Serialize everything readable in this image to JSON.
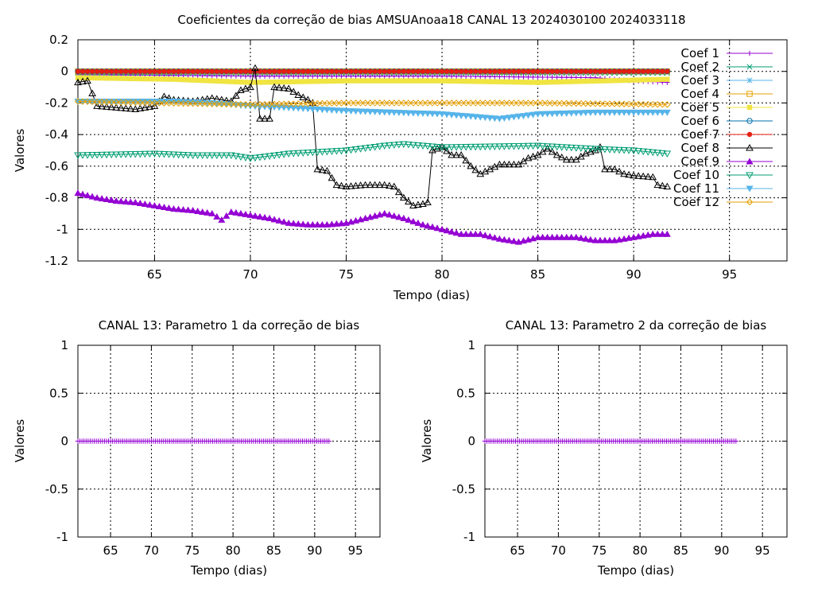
{
  "chart_data": [
    {
      "type": "line",
      "title": "Coeficientes da correção de bias AMSUAnoaa18 CANAL 13 2024030100 2024033118",
      "xlabel": "Tempo (dias)",
      "ylabel": "Valores",
      "xlim": [
        61,
        98
      ],
      "ylim": [
        -1.2,
        0.2
      ],
      "xticks": [
        65,
        70,
        75,
        80,
        85,
        90,
        95
      ],
      "yticks": [
        -1.2,
        -1,
        -0.8,
        -0.6,
        -0.4,
        -0.2,
        0,
        0.2
      ],
      "ytick_labels": [
        "-1.2",
        "-1",
        "-0.8",
        "-0.6",
        "-0.4",
        "-0.2",
        "0",
        "0.2"
      ],
      "grid": true,
      "legend_position": "top-right",
      "x": {
        "start": 61,
        "end": 91.75,
        "step": 0.25
      },
      "series": [
        {
          "name": "Coef 1",
          "color": "#9400d3",
          "marker": "plus",
          "anchors": [
            [
              61,
              -0.02
            ],
            [
              70,
              -0.03
            ],
            [
              80,
              -0.03
            ],
            [
              88,
              -0.04
            ],
            [
              90,
              -0.06
            ],
            [
              91.75,
              -0.07
            ]
          ]
        },
        {
          "name": "Coef 2",
          "color": "#009e73",
          "marker": "cross",
          "anchors": [
            [
              61,
              -0.01
            ],
            [
              91.75,
              -0.01
            ]
          ]
        },
        {
          "name": "Coef 3",
          "color": "#56b4e9",
          "marker": "star",
          "anchors": [
            [
              61,
              0.0
            ],
            [
              91.75,
              0.0
            ]
          ]
        },
        {
          "name": "Coef 4",
          "color": "#e69f00",
          "marker": "square-open",
          "anchors": [
            [
              61,
              0.0
            ],
            [
              91.75,
              0.0
            ]
          ]
        },
        {
          "name": "Coef 5",
          "color": "#f0e442",
          "marker": "square-filled",
          "anchors": [
            [
              61,
              -0.04
            ],
            [
              66,
              -0.05
            ],
            [
              70,
              -0.07
            ],
            [
              75,
              -0.06
            ],
            [
              80,
              -0.06
            ],
            [
              85,
              -0.07
            ],
            [
              91.75,
              -0.05
            ]
          ]
        },
        {
          "name": "Coef 6",
          "color": "#0072b2",
          "marker": "circle",
          "anchors": [
            [
              61,
              0.0
            ],
            [
              91.75,
              0.0
            ]
          ]
        },
        {
          "name": "Coef 7",
          "color": "#e51e10",
          "marker": "circle-filled",
          "anchors": [
            [
              61,
              0.0
            ],
            [
              91.75,
              0.0
            ]
          ]
        },
        {
          "name": "Coef 8",
          "color": "#000000",
          "marker": "triangle-open",
          "anchors": [
            [
              61,
              -0.07
            ],
            [
              61.5,
              -0.06
            ],
            [
              62,
              -0.22
            ],
            [
              63,
              -0.23
            ],
            [
              64,
              -0.24
            ],
            [
              65,
              -0.22
            ],
            [
              65.5,
              -0.16
            ],
            [
              66,
              -0.18
            ],
            [
              67,
              -0.19
            ],
            [
              68,
              -0.17
            ],
            [
              69,
              -0.19
            ],
            [
              69.5,
              -0.12
            ],
            [
              70,
              -0.1
            ],
            [
              70.25,
              0.02
            ],
            [
              70.5,
              -0.3
            ],
            [
              71,
              -0.3
            ],
            [
              71.25,
              -0.1
            ],
            [
              72,
              -0.11
            ],
            [
              72.5,
              -0.15
            ],
            [
              73,
              -0.18
            ],
            [
              73.25,
              -0.2
            ],
            [
              73.5,
              -0.62
            ],
            [
              74,
              -0.63
            ],
            [
              74.5,
              -0.72
            ],
            [
              75,
              -0.73
            ],
            [
              76,
              -0.72
            ],
            [
              77,
              -0.72
            ],
            [
              77.5,
              -0.73
            ],
            [
              78,
              -0.8
            ],
            [
              78.5,
              -0.85
            ],
            [
              79,
              -0.84
            ],
            [
              79.25,
              -0.83
            ],
            [
              79.5,
              -0.5
            ],
            [
              80,
              -0.48
            ],
            [
              80.5,
              -0.53
            ],
            [
              81,
              -0.53
            ],
            [
              81.5,
              -0.6
            ],
            [
              82,
              -0.65
            ],
            [
              82.5,
              -0.62
            ],
            [
              83,
              -0.59
            ],
            [
              84,
              -0.59
            ],
            [
              84.5,
              -0.55
            ],
            [
              85,
              -0.53
            ],
            [
              85.5,
              -0.49
            ],
            [
              86,
              -0.53
            ],
            [
              86.5,
              -0.56
            ],
            [
              87,
              -0.56
            ],
            [
              87.5,
              -0.52
            ],
            [
              88,
              -0.5
            ],
            [
              88.25,
              -0.48
            ],
            [
              88.5,
              -0.62
            ],
            [
              89,
              -0.62
            ],
            [
              89.5,
              -0.65
            ],
            [
              90,
              -0.66
            ],
            [
              91,
              -0.67
            ],
            [
              91.25,
              -0.72
            ],
            [
              91.75,
              -0.73
            ]
          ]
        },
        {
          "name": "Coef 9",
          "color": "#9400d3",
          "marker": "triangle-filled",
          "anchors": [
            [
              61,
              -0.77
            ],
            [
              62,
              -0.8
            ],
            [
              63,
              -0.82
            ],
            [
              64,
              -0.83
            ],
            [
              65,
              -0.85
            ],
            [
              66,
              -0.87
            ],
            [
              67,
              -0.88
            ],
            [
              68,
              -0.9
            ],
            [
              68.5,
              -0.94
            ],
            [
              69,
              -0.89
            ],
            [
              70,
              -0.91
            ],
            [
              71,
              -0.93
            ],
            [
              72,
              -0.96
            ],
            [
              73,
              -0.97
            ],
            [
              74,
              -0.97
            ],
            [
              75,
              -0.96
            ],
            [
              76,
              -0.93
            ],
            [
              77,
              -0.9
            ],
            [
              78,
              -0.93
            ],
            [
              79,
              -0.97
            ],
            [
              80,
              -1.0
            ],
            [
              81,
              -1.03
            ],
            [
              82,
              -1.03
            ],
            [
              83,
              -1.06
            ],
            [
              84,
              -1.08
            ],
            [
              85,
              -1.05
            ],
            [
              86,
              -1.05
            ],
            [
              87,
              -1.05
            ],
            [
              88,
              -1.07
            ],
            [
              89,
              -1.07
            ],
            [
              90,
              -1.05
            ],
            [
              91,
              -1.03
            ],
            [
              91.75,
              -1.03
            ]
          ]
        },
        {
          "name": "Coef 10",
          "color": "#009e73",
          "marker": "triangle-down-open",
          "anchors": [
            [
              61,
              -0.53
            ],
            [
              65,
              -0.52
            ],
            [
              67,
              -0.53
            ],
            [
              69,
              -0.53
            ],
            [
              70,
              -0.55
            ],
            [
              72,
              -0.52
            ],
            [
              75,
              -0.5
            ],
            [
              77,
              -0.47
            ],
            [
              78,
              -0.46
            ],
            [
              80,
              -0.48
            ],
            [
              85,
              -0.47
            ],
            [
              88,
              -0.49
            ],
            [
              90,
              -0.5
            ],
            [
              91.75,
              -0.52
            ]
          ]
        },
        {
          "name": "Coef 11",
          "color": "#56b4e9",
          "marker": "triangle-down-filled",
          "anchors": [
            [
              61,
              -0.19
            ],
            [
              63,
              -0.19
            ],
            [
              66,
              -0.19
            ],
            [
              68,
              -0.2
            ],
            [
              70,
              -0.22
            ],
            [
              72,
              -0.23
            ],
            [
              75,
              -0.25
            ],
            [
              80,
              -0.27
            ],
            [
              83,
              -0.3
            ],
            [
              85,
              -0.27
            ],
            [
              88,
              -0.26
            ],
            [
              91.75,
              -0.26
            ]
          ]
        },
        {
          "name": "Coef 12",
          "color": "#e69f00",
          "marker": "diamond-open",
          "anchors": [
            [
              61,
              -0.19
            ],
            [
              65,
              -0.2
            ],
            [
              70,
              -0.21
            ],
            [
              75,
              -0.2
            ],
            [
              80,
              -0.2
            ],
            [
              85,
              -0.2
            ],
            [
              91.75,
              -0.21
            ]
          ]
        }
      ]
    },
    {
      "type": "line",
      "title": "CANAL 13: Parametro 1 da correção de bias",
      "xlabel": "Tempo (dias)",
      "ylabel": "Valores",
      "xlim": [
        61,
        98
      ],
      "ylim": [
        -1,
        1
      ],
      "xticks": [
        65,
        70,
        75,
        80,
        85,
        90,
        95
      ],
      "yticks": [
        -1,
        -0.5,
        0,
        0.5,
        1
      ],
      "ytick_labels": [
        "-1",
        "-0.5",
        "0",
        "0.5",
        "1"
      ],
      "grid": true,
      "x": {
        "start": 61,
        "end": 91.75,
        "step": 0.25
      },
      "series": [
        {
          "color": "#9400d3",
          "marker": "plus",
          "anchors": [
            [
              61,
              0
            ],
            [
              91.75,
              0
            ]
          ]
        }
      ]
    },
    {
      "type": "line",
      "title": "CANAL 13: Parametro 2 da correção de bias",
      "xlabel": "Tempo (dias)",
      "ylabel": "Valores",
      "xlim": [
        61,
        98
      ],
      "ylim": [
        -1,
        1
      ],
      "xticks": [
        65,
        70,
        75,
        80,
        85,
        90,
        95
      ],
      "yticks": [
        -1,
        -0.5,
        0,
        0.5,
        1
      ],
      "ytick_labels": [
        "-1",
        "-0.5",
        "0",
        "0.5",
        "1"
      ],
      "grid": true,
      "x": {
        "start": 61,
        "end": 91.75,
        "step": 0.25
      },
      "series": [
        {
          "color": "#9400d3",
          "marker": "plus",
          "anchors": [
            [
              61,
              0
            ],
            [
              91.75,
              0
            ]
          ]
        }
      ]
    }
  ]
}
